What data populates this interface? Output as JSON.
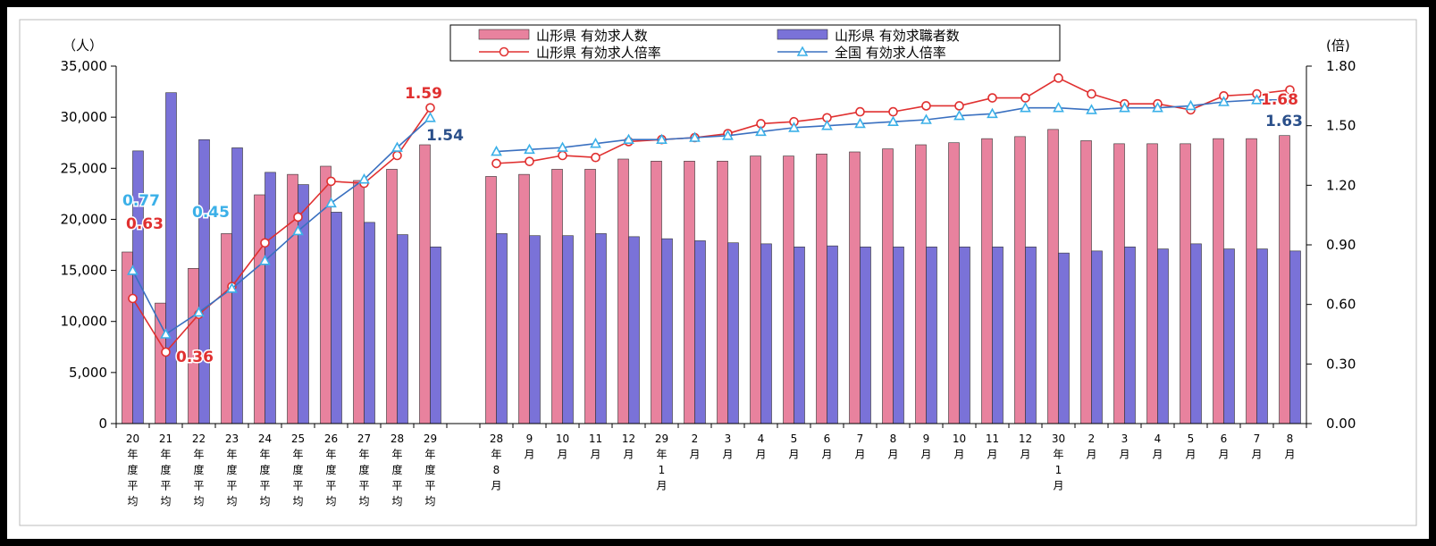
{
  "chart_data": {
    "type": "bar",
    "left_axis": {
      "unit": "（人）",
      "ylim": [
        0,
        35000
      ],
      "ticks": [
        "0",
        "5,000",
        "10,000",
        "15,000",
        "20,000",
        "25,000",
        "30,000",
        "35,000"
      ]
    },
    "right_axis": {
      "unit": "(倍)",
      "ylim": [
        0,
        1.8
      ],
      "ticks": [
        "0.00",
        "0.30",
        "0.60",
        "0.90",
        "1.20",
        "1.50",
        "1.80"
      ]
    },
    "legend_placement": "top-center",
    "categories": [
      [
        "20",
        "年",
        "度",
        "平",
        "均"
      ],
      [
        "21",
        "年",
        "度",
        "平",
        "均"
      ],
      [
        "22",
        "年",
        "度",
        "平",
        "均"
      ],
      [
        "23",
        "年",
        "度",
        "平",
        "均"
      ],
      [
        "24",
        "年",
        "度",
        "平",
        "均"
      ],
      [
        "25",
        "年",
        "度",
        "平",
        "均"
      ],
      [
        "26",
        "年",
        "度",
        "平",
        "均"
      ],
      [
        "27",
        "年",
        "度",
        "平",
        "均"
      ],
      [
        "28",
        "年",
        "度",
        "平",
        "均"
      ],
      [
        "29",
        "年",
        "度",
        "平",
        "均"
      ],
      [],
      [
        "28",
        "年",
        "8",
        "月"
      ],
      [
        "9",
        "月"
      ],
      [
        "10",
        "月"
      ],
      [
        "11",
        "月"
      ],
      [
        "12",
        "月"
      ],
      [
        "29",
        "年",
        "1",
        "月"
      ],
      [
        "2",
        "月"
      ],
      [
        "3",
        "月"
      ],
      [
        "4",
        "月"
      ],
      [
        "5",
        "月"
      ],
      [
        "6",
        "月"
      ],
      [
        "7",
        "月"
      ],
      [
        "8",
        "月"
      ],
      [
        "9",
        "月"
      ],
      [
        "10",
        "月"
      ],
      [
        "11",
        "月"
      ],
      [
        "12",
        "月"
      ],
      [
        "30",
        "年",
        "1",
        "月"
      ],
      [
        "2",
        "月"
      ],
      [
        "3",
        "月"
      ],
      [
        "4",
        "月"
      ],
      [
        "5",
        "月"
      ],
      [
        "6",
        "月"
      ],
      [
        "7",
        "月"
      ],
      [
        "8",
        "月"
      ]
    ],
    "series": [
      {
        "name": "山形県 有効求人数",
        "type": "bar",
        "axis": "left",
        "color": "#e8829e",
        "values": [
          16800,
          11800,
          15200,
          18600,
          22400,
          24400,
          25200,
          23800,
          24900,
          27300,
          null,
          24200,
          24400,
          24900,
          24900,
          25900,
          25700,
          25700,
          25700,
          26200,
          26200,
          26400,
          26600,
          26900,
          27300,
          27500,
          27900,
          28100,
          28800,
          27700,
          27400,
          27400,
          27400,
          27900,
          27900,
          28200
        ]
      },
      {
        "name": "山形県 有効求職者数",
        "type": "bar",
        "axis": "left",
        "color": "#7a72d8",
        "values": [
          26700,
          32400,
          27800,
          27000,
          24600,
          23400,
          20700,
          19700,
          18500,
          17300,
          null,
          18600,
          18400,
          18400,
          18600,
          18300,
          18100,
          17900,
          17700,
          17600,
          17300,
          17400,
          17300,
          17300,
          17300,
          17300,
          17300,
          17300,
          16700,
          16900,
          17300,
          17100,
          17600,
          17100,
          17100,
          16900
        ]
      },
      {
        "name": "山形県 有効求人倍率",
        "type": "line",
        "axis": "right",
        "color": "#e03030",
        "values": [
          0.63,
          0.36,
          0.55,
          0.69,
          0.91,
          1.04,
          1.22,
          1.21,
          1.35,
          1.59,
          null,
          1.31,
          1.32,
          1.35,
          1.34,
          1.42,
          1.43,
          1.44,
          1.46,
          1.51,
          1.52,
          1.54,
          1.57,
          1.57,
          1.6,
          1.6,
          1.64,
          1.64,
          1.74,
          1.66,
          1.61,
          1.61,
          1.58,
          1.65,
          1.66,
          1.68
        ]
      },
      {
        "name": "全国 有効求人倍率",
        "type": "line",
        "axis": "right",
        "color": "#3a70c0",
        "marker_color": "#3bb0e8",
        "values": [
          0.77,
          0.45,
          0.56,
          0.68,
          0.82,
          0.97,
          1.11,
          1.23,
          1.39,
          1.54,
          null,
          1.37,
          1.38,
          1.39,
          1.41,
          1.43,
          1.43,
          1.44,
          1.45,
          1.47,
          1.49,
          1.5,
          1.51,
          1.52,
          1.53,
          1.55,
          1.56,
          1.59,
          1.59,
          1.58,
          1.59,
          1.59,
          1.6,
          1.62,
          1.63,
          1.63
        ]
      }
    ],
    "data_labels": [
      {
        "text": "0.77",
        "color": "#3bb0e8"
      },
      {
        "text": "0.63",
        "color": "#e03030"
      },
      {
        "text": "0.36",
        "color": "#e03030"
      },
      {
        "text": "0.45",
        "color": "#3bb0e8"
      },
      {
        "text": "1.59",
        "color": "#e03030"
      },
      {
        "text": "1.54",
        "color": "#2a4f8a"
      },
      {
        "text": "1.68",
        "color": "#e03030"
      },
      {
        "text": "1.63",
        "color": "#2a4f8a"
      }
    ]
  }
}
